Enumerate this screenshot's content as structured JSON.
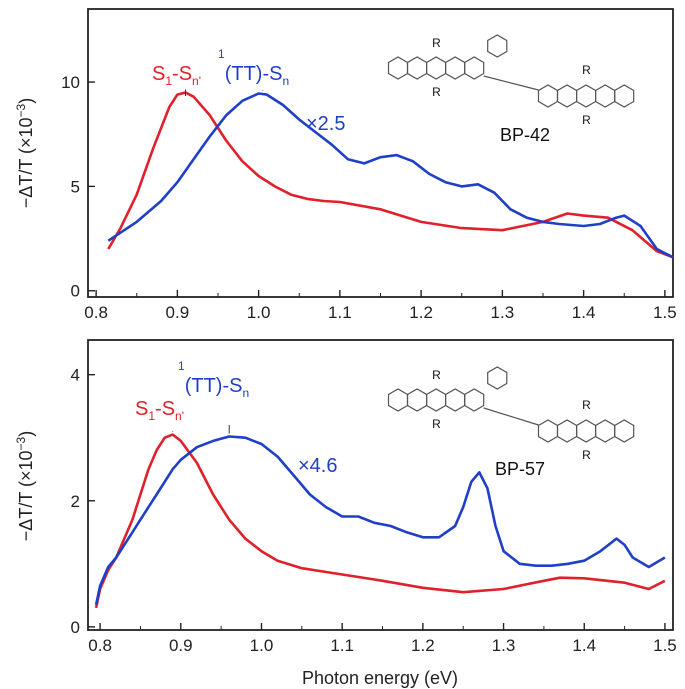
{
  "colors": {
    "red": "#e0202a",
    "blue": "#1f3fc8",
    "axis": "#222222",
    "ring": "#555555"
  },
  "chart_data": [
    {
      "type": "line",
      "panel": "top",
      "xlabel": "",
      "ylabel": "−ΔT/T (×10",
      "ylabel_exp": "−3",
      "ylabel_close": ")",
      "xlim": [
        0.79,
        1.51
      ],
      "ylim": [
        -0.3,
        13.5
      ],
      "xticks": [
        "0.8",
        "0.9",
        "1.0",
        "1.1",
        "1.2",
        "1.3",
        "1.4",
        "1.5"
      ],
      "xtick_values": [
        0.8,
        0.9,
        1.0,
        1.1,
        1.2,
        1.3,
        1.4,
        1.5
      ],
      "yticks": [
        "0",
        "5",
        "10"
      ],
      "ytick_values": [
        0,
        5,
        10
      ],
      "annotations": {
        "red_main": "S",
        "red_sub1": "1",
        "red_mid": "-S",
        "red_sub2": "n'",
        "blue_sup": "1",
        "blue_main": "(TT)-S",
        "blue_sub": "n",
        "scale": "×2.5"
      },
      "peak_markers": {
        "red_x": 0.91,
        "blue_x": 1.005
      },
      "molecule_label": "BP-42",
      "r_label": "R",
      "series": [
        {
          "color": "red",
          "x": [
            0.815,
            0.83,
            0.85,
            0.87,
            0.89,
            0.9,
            0.91,
            0.92,
            0.94,
            0.96,
            0.98,
            1.0,
            1.02,
            1.04,
            1.06,
            1.08,
            1.1,
            1.15,
            1.2,
            1.25,
            1.3,
            1.35,
            1.38,
            1.4,
            1.43,
            1.46,
            1.49,
            1.51
          ],
          "y": [
            2.0,
            3.0,
            4.6,
            6.8,
            8.8,
            9.4,
            9.5,
            9.3,
            8.4,
            7.2,
            6.2,
            5.5,
            5.0,
            4.6,
            4.4,
            4.3,
            4.25,
            3.9,
            3.3,
            3.0,
            2.9,
            3.3,
            3.7,
            3.6,
            3.5,
            2.9,
            1.9,
            1.6
          ]
        },
        {
          "color": "blue",
          "x": [
            0.815,
            0.85,
            0.88,
            0.9,
            0.92,
            0.94,
            0.96,
            0.98,
            1.0,
            1.01,
            1.03,
            1.05,
            1.07,
            1.09,
            1.11,
            1.13,
            1.15,
            1.17,
            1.19,
            1.21,
            1.23,
            1.25,
            1.27,
            1.29,
            1.31,
            1.33,
            1.35,
            1.37,
            1.4,
            1.42,
            1.44,
            1.45,
            1.47,
            1.49,
            1.51
          ],
          "y": [
            2.4,
            3.3,
            4.3,
            5.2,
            6.3,
            7.4,
            8.4,
            9.1,
            9.45,
            9.4,
            8.9,
            8.2,
            7.6,
            7.0,
            6.3,
            6.1,
            6.4,
            6.5,
            6.2,
            5.6,
            5.2,
            5.0,
            5.1,
            4.7,
            3.9,
            3.5,
            3.3,
            3.2,
            3.1,
            3.2,
            3.5,
            3.6,
            3.1,
            2.0,
            1.6
          ]
        }
      ]
    },
    {
      "type": "line",
      "panel": "bottom",
      "xlabel": "Photon energy (eV)",
      "ylabel": "−ΔT/T (×10",
      "ylabel_exp": "−3",
      "ylabel_close": ")",
      "xlim": [
        0.785,
        1.51
      ],
      "ylim": [
        -0.05,
        4.55
      ],
      "xticks": [
        "0.8",
        "0.9",
        "1.0",
        "1.1",
        "1.2",
        "1.3",
        "1.4",
        "1.5"
      ],
      "xtick_values": [
        0.8,
        0.9,
        1.0,
        1.1,
        1.2,
        1.3,
        1.4,
        1.5
      ],
      "yticks": [
        "0",
        "2",
        "4"
      ],
      "ytick_values": [
        0,
        2,
        4
      ],
      "annotations": {
        "red_main": "S",
        "red_sub1": "1",
        "red_mid": "-S",
        "red_sub2": "n'",
        "blue_sup": "1",
        "blue_main": "(TT)-S",
        "blue_sub": "n",
        "scale": "×4.6"
      },
      "peak_markers": {
        "red_x": 0.89,
        "blue_x": 0.96
      },
      "molecule_label": "BP-57",
      "r_label": "R",
      "series": [
        {
          "color": "red",
          "x": [
            0.795,
            0.8,
            0.81,
            0.82,
            0.83,
            0.84,
            0.85,
            0.86,
            0.87,
            0.88,
            0.89,
            0.9,
            0.92,
            0.94,
            0.96,
            0.98,
            1.0,
            1.02,
            1.05,
            1.08,
            1.1,
            1.15,
            1.2,
            1.25,
            1.3,
            1.35,
            1.37,
            1.4,
            1.45,
            1.48,
            1.5
          ],
          "y": [
            0.3,
            0.6,
            0.9,
            1.1,
            1.4,
            1.7,
            2.1,
            2.5,
            2.8,
            3.0,
            3.05,
            2.95,
            2.6,
            2.1,
            1.7,
            1.4,
            1.2,
            1.05,
            0.93,
            0.87,
            0.83,
            0.73,
            0.62,
            0.55,
            0.6,
            0.73,
            0.78,
            0.77,
            0.7,
            0.6,
            0.73
          ]
        },
        {
          "color": "blue",
          "x": [
            0.795,
            0.8,
            0.81,
            0.82,
            0.83,
            0.84,
            0.85,
            0.86,
            0.87,
            0.88,
            0.89,
            0.9,
            0.92,
            0.94,
            0.96,
            0.98,
            1.0,
            1.02,
            1.04,
            1.06,
            1.08,
            1.1,
            1.12,
            1.14,
            1.16,
            1.18,
            1.2,
            1.22,
            1.24,
            1.25,
            1.26,
            1.27,
            1.28,
            1.29,
            1.3,
            1.32,
            1.34,
            1.36,
            1.38,
            1.4,
            1.42,
            1.44,
            1.45,
            1.46,
            1.48,
            1.5
          ],
          "y": [
            0.35,
            0.65,
            0.95,
            1.1,
            1.3,
            1.5,
            1.7,
            1.9,
            2.1,
            2.3,
            2.5,
            2.65,
            2.85,
            2.95,
            3.02,
            3.0,
            2.9,
            2.7,
            2.4,
            2.1,
            1.9,
            1.75,
            1.75,
            1.65,
            1.6,
            1.5,
            1.42,
            1.42,
            1.6,
            1.9,
            2.3,
            2.45,
            2.2,
            1.6,
            1.2,
            1.0,
            0.97,
            0.97,
            1.0,
            1.05,
            1.2,
            1.4,
            1.3,
            1.1,
            0.95,
            1.1
          ]
        }
      ]
    }
  ]
}
